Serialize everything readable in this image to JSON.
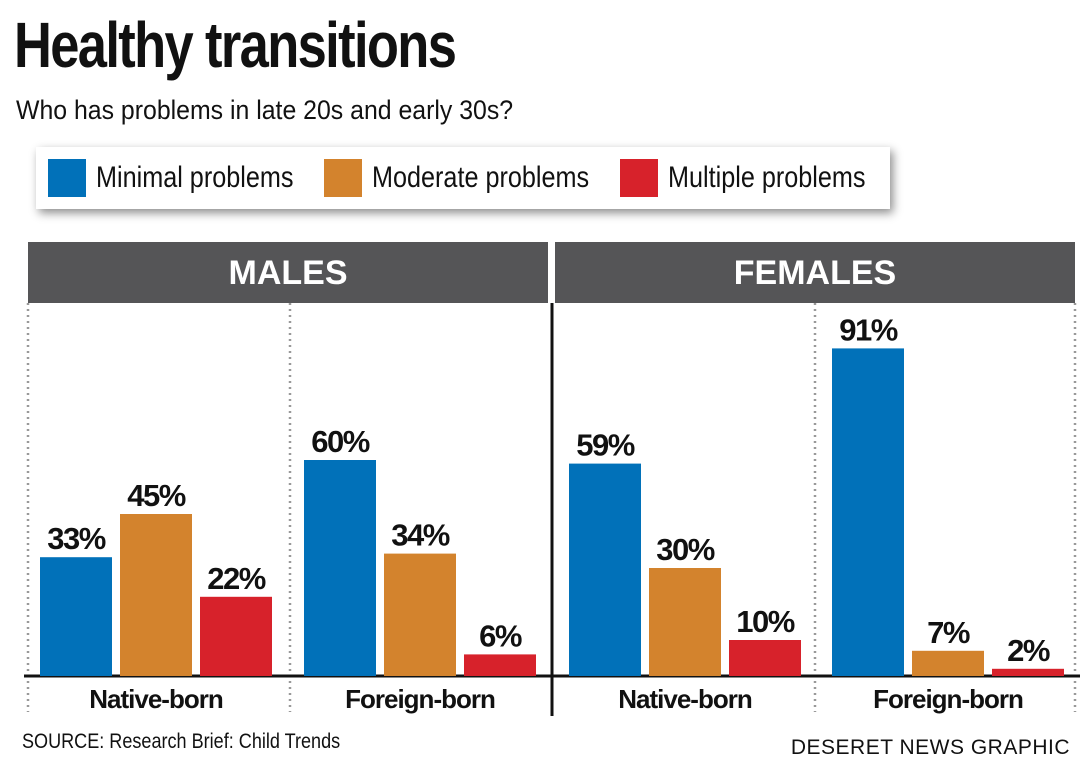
{
  "header": {
    "title": "Healthy transitions",
    "subtitle": "Who has problems in late 20s and early 30s?"
  },
  "legend": [
    {
      "label": "Minimal problems",
      "color": "#0171b9"
    },
    {
      "label": "Moderate problems",
      "color": "#d3832d"
    },
    {
      "label": "Multiple problems",
      "color": "#d7222b"
    }
  ],
  "footer": {
    "source": "SOURCE: Research Brief: Child Trends",
    "credit": "DESERET NEWS GRAPHIC"
  },
  "chart_data": {
    "type": "bar",
    "ylim": [
      0,
      100
    ],
    "series_names": [
      "Minimal problems",
      "Moderate problems",
      "Multiple problems"
    ],
    "panels": [
      {
        "title": "MALES",
        "groups": [
          {
            "label": "Native-born",
            "values": [
              33,
              45,
              22
            ],
            "value_labels": [
              "33%",
              "45%",
              "22%"
            ]
          },
          {
            "label": "Foreign-born",
            "values": [
              60,
              34,
              6
            ],
            "value_labels": [
              "60%",
              "34%",
              "6%"
            ]
          }
        ]
      },
      {
        "title": "FEMALES",
        "groups": [
          {
            "label": "Native-born",
            "values": [
              59,
              30,
              10
            ],
            "value_labels": [
              "59%",
              "30%",
              "10%"
            ]
          },
          {
            "label": "Foreign-born",
            "values": [
              91,
              7,
              2
            ],
            "value_labels": [
              "91%",
              "7%",
              "2%"
            ]
          }
        ]
      }
    ]
  }
}
